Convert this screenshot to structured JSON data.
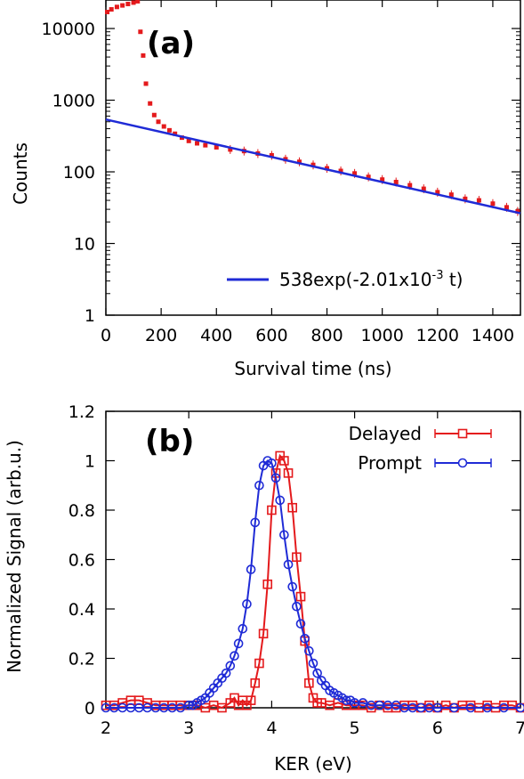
{
  "chart_data": [
    {
      "type": "scatter",
      "panel_label": "(a)",
      "xlabel": "Survival time (ns)",
      "ylabel": "Counts",
      "xlim": [
        0,
        1500
      ],
      "ylim": [
        1,
        25000
      ],
      "yscale": "log",
      "xticks": [
        "0",
        "200",
        "400",
        "600",
        "800",
        "1000",
        "1200",
        "1400"
      ],
      "yticks": [
        "1",
        "10",
        "100",
        "1000",
        "10000"
      ],
      "grid": false,
      "legend_position": "bottom-right",
      "data_color": "#e41a1c",
      "fit_color": "#1f2bd6",
      "series": [
        {
          "x": [
            5,
            20,
            40,
            60,
            80,
            100,
            115,
            125,
            135,
            145,
            160,
            175,
            190,
            210,
            230,
            250,
            275,
            300,
            330,
            360,
            400,
            450,
            500,
            550,
            600,
            650,
            700,
            750,
            800,
            850,
            900,
            950,
            1000,
            1050,
            1100,
            1150,
            1200,
            1250,
            1300,
            1350,
            1400,
            1450,
            1490
          ],
          "y": [
            17000,
            18500,
            20000,
            21000,
            22000,
            23000,
            24000,
            9000,
            4200,
            1700,
            900,
            620,
            500,
            430,
            380,
            340,
            300,
            270,
            250,
            235,
            220,
            205,
            195,
            180,
            170,
            150,
            138,
            125,
            112,
            103,
            95,
            85,
            78,
            72,
            65,
            58,
            52,
            48,
            42,
            40,
            36,
            32,
            28
          ]
        }
      ],
      "fit": {
        "name": "538exp(-2.01x10",
        "name_sup": "-3",
        "name_end": " t)",
        "amplitude": 538,
        "rate": 0.00201
      }
    },
    {
      "type": "line",
      "panel_label": "(b)",
      "xlabel": "KER (eV)",
      "ylabel": "Normalized Signal (arb.u.)",
      "xlim": [
        2,
        7
      ],
      "ylim": [
        0,
        1.2
      ],
      "xticks": [
        "2",
        "3",
        "4",
        "5",
        "6",
        "7"
      ],
      "yticks": [
        "0",
        "0.2",
        "0.4",
        "0.6",
        "0.8",
        "1",
        "1.2"
      ],
      "grid": false,
      "legend_position": "top-right",
      "series": [
        {
          "name": "Delayed",
          "color": "#e41a1c",
          "marker": "square",
          "x": [
            2.0,
            2.1,
            2.2,
            2.3,
            2.4,
            2.5,
            2.6,
            2.7,
            2.8,
            2.9,
            3.0,
            3.1,
            3.2,
            3.3,
            3.4,
            3.5,
            3.55,
            3.6,
            3.65,
            3.7,
            3.75,
            3.8,
            3.85,
            3.9,
            3.95,
            4.0,
            4.05,
            4.1,
            4.15,
            4.2,
            4.25,
            4.3,
            4.35,
            4.4,
            4.45,
            4.5,
            4.55,
            4.6,
            4.7,
            4.8,
            4.9,
            5.0,
            5.1,
            5.2,
            5.3,
            5.4,
            5.5,
            5.6,
            5.7,
            5.8,
            5.9,
            6.0,
            6.1,
            6.2,
            6.3,
            6.4,
            6.5,
            6.6,
            6.7,
            6.8,
            6.9,
            7.0
          ],
          "y": [
            0.01,
            0.01,
            0.02,
            0.03,
            0.03,
            0.02,
            0.01,
            0.01,
            0.01,
            0.01,
            0.01,
            0.01,
            0.0,
            0.01,
            0.0,
            0.02,
            0.04,
            0.01,
            0.03,
            0.01,
            0.03,
            0.1,
            0.18,
            0.3,
            0.5,
            0.8,
            0.95,
            1.02,
            1.0,
            0.95,
            0.81,
            0.61,
            0.45,
            0.27,
            0.1,
            0.04,
            0.02,
            0.02,
            0.01,
            0.02,
            0.01,
            0.01,
            0.01,
            0.0,
            0.01,
            0.0,
            0.0,
            0.01,
            0.01,
            0.0,
            0.01,
            0.0,
            0.01,
            0.0,
            0.01,
            0.01,
            0.0,
            0.01,
            0.0,
            0.01,
            0.01,
            0.0
          ]
        },
        {
          "name": "Prompt",
          "color": "#1f2bd6",
          "marker": "circle",
          "x": [
            2.0,
            2.1,
            2.2,
            2.3,
            2.4,
            2.5,
            2.6,
            2.7,
            2.8,
            2.9,
            3.0,
            3.05,
            3.1,
            3.15,
            3.2,
            3.25,
            3.3,
            3.35,
            3.4,
            3.45,
            3.5,
            3.55,
            3.6,
            3.65,
            3.7,
            3.75,
            3.8,
            3.85,
            3.9,
            3.95,
            4.0,
            4.05,
            4.1,
            4.15,
            4.2,
            4.25,
            4.3,
            4.35,
            4.4,
            4.45,
            4.5,
            4.55,
            4.6,
            4.65,
            4.7,
            4.75,
            4.8,
            4.85,
            4.9,
            4.95,
            5.0,
            5.1,
            5.2,
            5.3,
            5.4,
            5.5,
            5.6,
            5.7,
            5.8,
            5.9,
            6.0,
            6.2,
            6.4,
            6.6,
            6.8,
            7.0
          ],
          "y": [
            0.0,
            0.0,
            0.0,
            0.0,
            0.0,
            0.0,
            0.0,
            0.0,
            0.0,
            0.0,
            0.01,
            0.01,
            0.02,
            0.03,
            0.04,
            0.06,
            0.08,
            0.1,
            0.12,
            0.14,
            0.17,
            0.21,
            0.26,
            0.32,
            0.42,
            0.56,
            0.75,
            0.9,
            0.98,
            1.0,
            0.99,
            0.93,
            0.84,
            0.7,
            0.58,
            0.49,
            0.41,
            0.34,
            0.28,
            0.23,
            0.18,
            0.14,
            0.11,
            0.09,
            0.07,
            0.06,
            0.05,
            0.04,
            0.03,
            0.03,
            0.02,
            0.02,
            0.01,
            0.01,
            0.01,
            0.01,
            0.0,
            0.0,
            0.0,
            0.0,
            0.0,
            0.0,
            0.0,
            0.0,
            0.0,
            0.0
          ]
        }
      ]
    }
  ]
}
